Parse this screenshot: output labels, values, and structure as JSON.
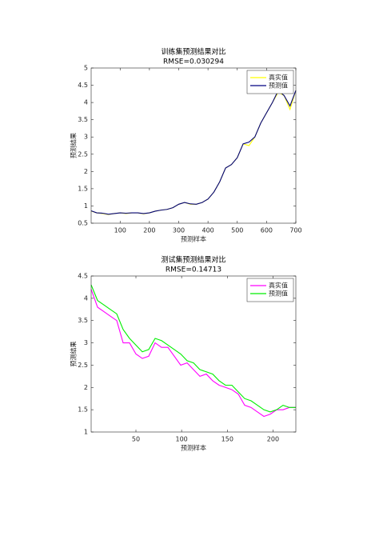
{
  "chart_data": [
    {
      "type": "line",
      "title": "训练集预测结果对比",
      "subtitle": "RMSE=0.030294",
      "xlabel": "预测样本",
      "ylabel": "预测结果",
      "x": [
        1,
        20,
        40,
        60,
        80,
        100,
        120,
        140,
        160,
        180,
        200,
        220,
        240,
        260,
        280,
        300,
        320,
        340,
        360,
        380,
        400,
        420,
        440,
        460,
        480,
        500,
        520,
        540,
        560,
        580,
        600,
        620,
        640,
        660,
        680,
        700
      ],
      "series": [
        {
          "name": "真实值",
          "color": "#ffff00",
          "values": [
            0.85,
            0.8,
            0.78,
            0.75,
            0.78,
            0.8,
            0.78,
            0.8,
            0.8,
            0.77,
            0.8,
            0.85,
            0.88,
            0.9,
            0.95,
            1.05,
            1.1,
            1.05,
            1.05,
            1.1,
            1.2,
            1.4,
            1.7,
            2.1,
            2.2,
            2.4,
            2.8,
            2.75,
            3.0,
            3.4,
            3.7,
            4.0,
            4.3,
            4.2,
            3.8,
            4.35
          ]
        },
        {
          "name": "预测值",
          "color": "#000080",
          "values": [
            0.86,
            0.8,
            0.79,
            0.76,
            0.78,
            0.8,
            0.79,
            0.8,
            0.8,
            0.78,
            0.8,
            0.85,
            0.88,
            0.9,
            0.95,
            1.05,
            1.1,
            1.06,
            1.05,
            1.1,
            1.2,
            1.4,
            1.7,
            2.1,
            2.2,
            2.4,
            2.8,
            2.85,
            3.0,
            3.4,
            3.7,
            4.0,
            4.35,
            4.2,
            3.9,
            4.35
          ]
        }
      ],
      "xlim": [
        1,
        700
      ],
      "ylim": [
        0.5,
        5
      ],
      "xticks": [
        100,
        200,
        300,
        400,
        500,
        600,
        700
      ],
      "yticks": [
        0.5,
        1,
        1.5,
        2,
        2.5,
        3,
        3.5,
        4,
        4.5,
        5
      ],
      "legend": "northeast"
    },
    {
      "type": "line",
      "title": "测试集预测结果对比",
      "subtitle": "RMSE=0.14713",
      "xlabel": "预测样本",
      "ylabel": "预测结果",
      "x": [
        1,
        8,
        15,
        22,
        29,
        36,
        43,
        50,
        57,
        64,
        71,
        78,
        85,
        92,
        99,
        106,
        113,
        120,
        127,
        134,
        141,
        148,
        155,
        162,
        169,
        176,
        183,
        190,
        197,
        204,
        211,
        218,
        225
      ],
      "series": [
        {
          "name": "真实值",
          "color": "#ff00ff",
          "values": [
            4.2,
            3.8,
            3.7,
            3.6,
            3.5,
            3.0,
            3.0,
            2.75,
            2.65,
            2.7,
            3.0,
            2.9,
            2.9,
            2.7,
            2.5,
            2.55,
            2.4,
            2.25,
            2.3,
            2.15,
            2.05,
            2.0,
            1.95,
            1.85,
            1.6,
            1.55,
            1.45,
            1.35,
            1.4,
            1.5,
            1.5,
            1.55,
            1.55
          ]
        },
        {
          "name": "预测值",
          "color": "#00ee00",
          "values": [
            4.3,
            3.95,
            3.85,
            3.75,
            3.65,
            3.3,
            3.1,
            2.95,
            2.8,
            2.85,
            3.1,
            3.05,
            2.95,
            2.85,
            2.75,
            2.6,
            2.55,
            2.4,
            2.35,
            2.3,
            2.15,
            2.05,
            2.05,
            1.9,
            1.75,
            1.7,
            1.6,
            1.5,
            1.45,
            1.5,
            1.6,
            1.55,
            1.55
          ]
        }
      ],
      "xlim": [
        1,
        225
      ],
      "ylim": [
        1,
        4.5
      ],
      "xticks": [
        50,
        100,
        150,
        200
      ],
      "yticks": [
        1,
        1.5,
        2,
        2.5,
        3,
        3.5,
        4,
        4.5
      ],
      "legend": "northeast"
    }
  ]
}
